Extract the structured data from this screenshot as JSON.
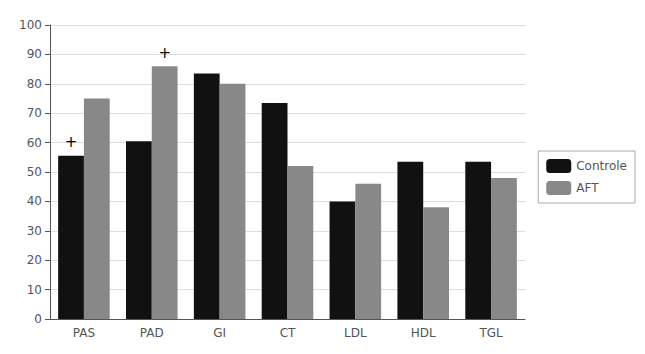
{
  "chart_data": {
    "type": "bar",
    "categories": [
      "PAS",
      "PAD",
      "GI",
      "CT",
      "LDL",
      "HDL",
      "TGL"
    ],
    "series": [
      {
        "name": "Controle",
        "color": "#111111",
        "values": [
          55.5,
          60.5,
          83.5,
          73.5,
          40.0,
          53.5,
          53.5
        ]
      },
      {
        "name": "AFT",
        "color": "#888888",
        "values": [
          75.0,
          86.0,
          80.0,
          52.0,
          46.0,
          38.0,
          48.0
        ]
      }
    ],
    "ylim": [
      0,
      100
    ],
    "yticks": [
      0,
      10,
      20,
      30,
      40,
      50,
      60,
      70,
      80,
      90,
      100
    ],
    "grid": true,
    "legend": "right",
    "annotations": [
      {
        "text": "+",
        "category": "PAS",
        "series": "Controle"
      },
      {
        "text": "+",
        "category": "PAD",
        "series": "AFT"
      }
    ]
  }
}
